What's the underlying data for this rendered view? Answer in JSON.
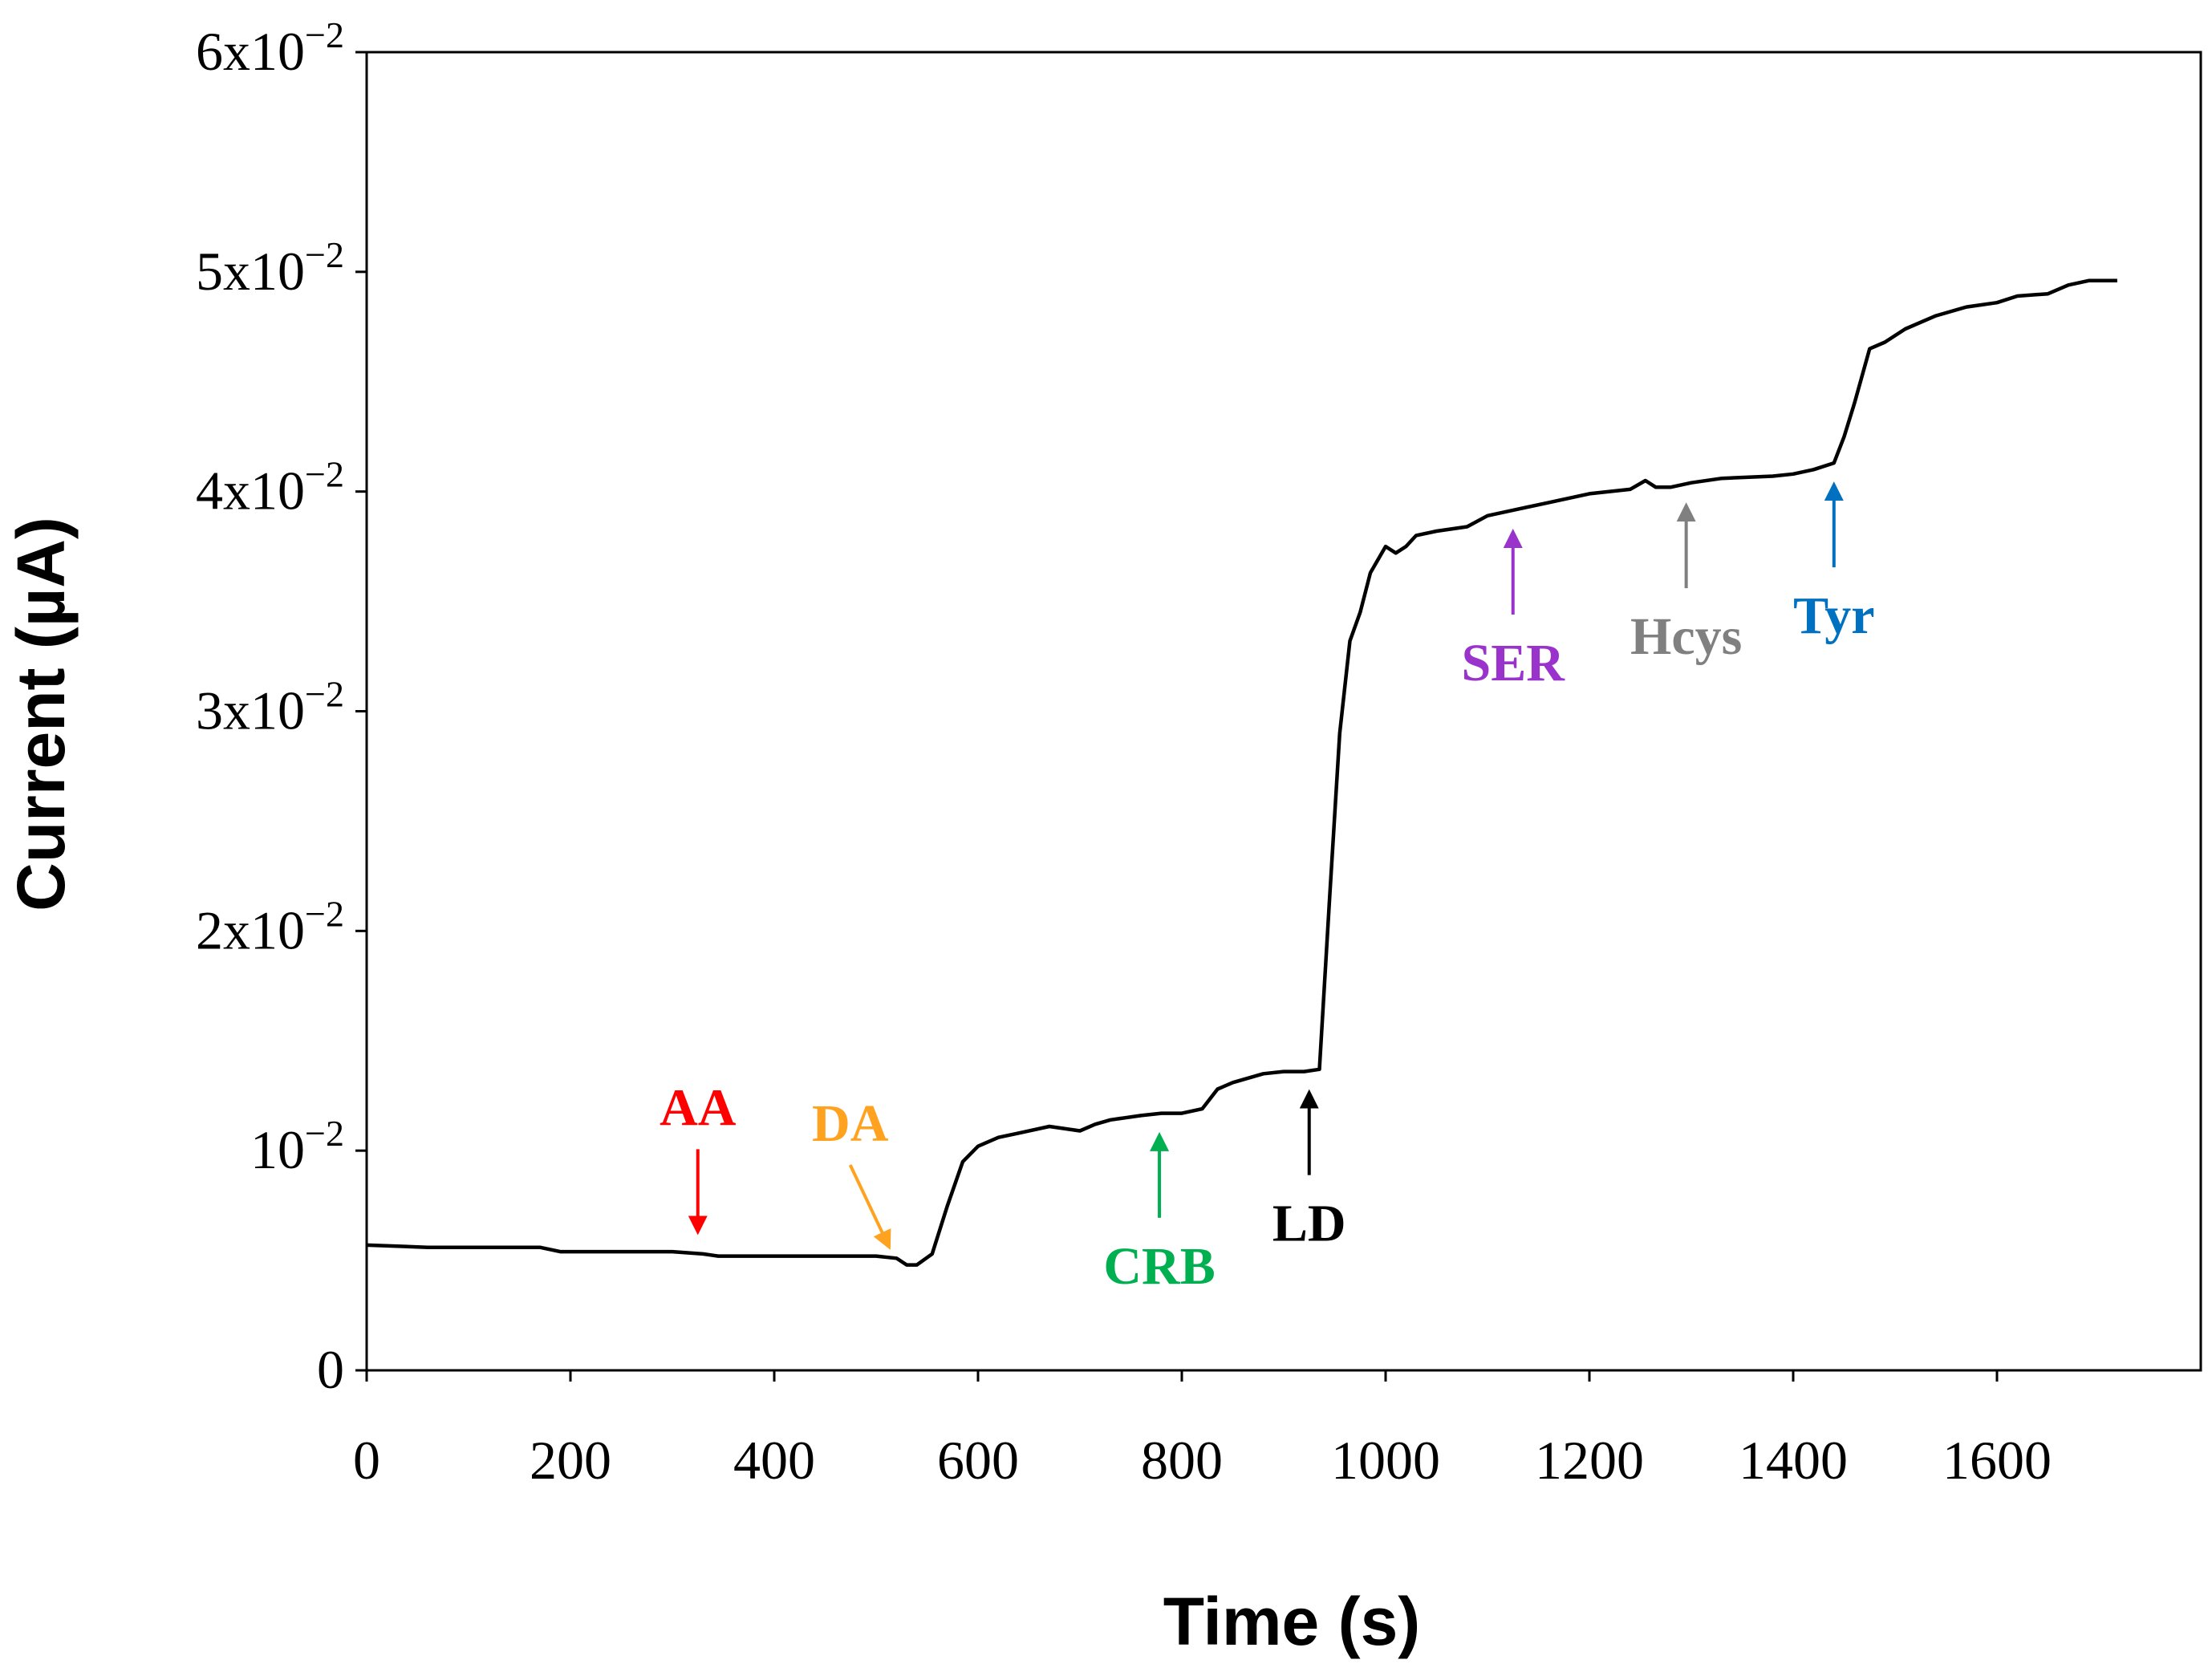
{
  "chart_data": {
    "type": "line",
    "title": "",
    "xlabel": "Time (s)",
    "ylabel": "Current (µA)",
    "xlim": [
      0,
      1800
    ],
    "ylim": [
      0,
      0.06
    ],
    "grid": false,
    "x_ticks": [
      0,
      200,
      400,
      600,
      800,
      1000,
      1200,
      1400,
      1600
    ],
    "x_tick_labels": [
      "0",
      "200",
      "400",
      "600",
      "800",
      "1000",
      "1200",
      "1400",
      "1600"
    ],
    "y_ticks": [
      {
        "value": 0,
        "base": "0",
        "exp": ""
      },
      {
        "value": 0.01,
        "base": "10",
        "exp": "−2"
      },
      {
        "value": 0.02,
        "base": "2x10",
        "exp": "−2"
      },
      {
        "value": 0.03,
        "base": "3x10",
        "exp": "−2"
      },
      {
        "value": 0.04,
        "base": "4x10",
        "exp": "−2"
      },
      {
        "value": 0.05,
        "base": "5x10",
        "exp": "−2"
      },
      {
        "value": 0.06,
        "base": "6x10",
        "exp": "−2"
      }
    ],
    "series": [
      {
        "name": "Current",
        "color": "#000000",
        "x": [
          0,
          60,
          170,
          190,
          300,
          330,
          345,
          400,
          500,
          520,
          530,
          540,
          555,
          570,
          585,
          600,
          620,
          640,
          670,
          700,
          715,
          730,
          760,
          780,
          800,
          820,
          835,
          850,
          880,
          900,
          920,
          935,
          945,
          955,
          965,
          975,
          985,
          1000,
          1010,
          1020,
          1030,
          1050,
          1080,
          1100,
          1130,
          1160,
          1200,
          1240,
          1255,
          1265,
          1280,
          1300,
          1330,
          1380,
          1400,
          1420,
          1440,
          1450,
          1460,
          1475,
          1490,
          1510,
          1540,
          1570,
          1600,
          1620,
          1650,
          1670,
          1690,
          1710,
          1718
        ],
        "y": [
          0.0057,
          0.0056,
          0.0056,
          0.0054,
          0.0054,
          0.0053,
          0.0052,
          0.0052,
          0.0052,
          0.0051,
          0.0048,
          0.0048,
          0.0053,
          0.0075,
          0.0095,
          0.0102,
          0.0106,
          0.0108,
          0.0111,
          0.0109,
          0.0112,
          0.0114,
          0.0116,
          0.0117,
          0.0117,
          0.0119,
          0.0128,
          0.0131,
          0.0135,
          0.0136,
          0.0136,
          0.0137,
          0.0215,
          0.029,
          0.0332,
          0.0345,
          0.0363,
          0.0375,
          0.0372,
          0.0375,
          0.038,
          0.0382,
          0.0384,
          0.0389,
          0.0392,
          0.0395,
          0.0399,
          0.0401,
          0.0405,
          0.0402,
          0.0402,
          0.0404,
          0.0406,
          0.0407,
          0.0408,
          0.041,
          0.0413,
          0.0425,
          0.044,
          0.0465,
          0.0468,
          0.0474,
          0.048,
          0.0484,
          0.0486,
          0.0489,
          0.049,
          0.0494,
          0.0496,
          0.0496,
          0.0496
        ]
      }
    ],
    "annotations": [
      {
        "label": "AA",
        "color": "#ff0000",
        "x": 325,
        "arrow": "down",
        "label_position": "above"
      },
      {
        "label": "DA",
        "color": "#ffa21f",
        "x": 510,
        "arrow": "diagonal-down",
        "label_position": "above"
      },
      {
        "label": "CRB",
        "color": "#00b050",
        "x": 778,
        "arrow": "up",
        "label_position": "below"
      },
      {
        "label": "LD",
        "color": "#000000",
        "x": 925,
        "arrow": "up",
        "label_position": "below"
      },
      {
        "label": "SER",
        "color": "#9933cc",
        "x": 1125,
        "arrow": "up",
        "label_position": "below"
      },
      {
        "label": "Hcys",
        "color": "#808080",
        "x": 1295,
        "arrow": "up",
        "label_position": "below"
      },
      {
        "label": "Tyr",
        "color": "#0070c0",
        "x": 1440,
        "arrow": "up",
        "label_position": "below"
      }
    ]
  }
}
